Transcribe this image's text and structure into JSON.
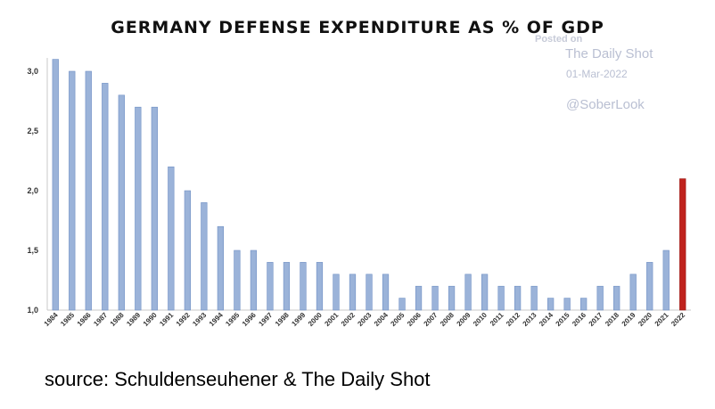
{
  "chart_data": {
    "type": "bar",
    "title": "GERMANY DEFENSE EXPENDITURE AS % OF GDP",
    "xlabel": "",
    "ylabel": "",
    "categories": [
      "1984",
      "1985",
      "1986",
      "1987",
      "1988",
      "1989",
      "1990",
      "1991",
      "1992",
      "1993",
      "1994",
      "1995",
      "1996",
      "1997",
      "1998",
      "1999",
      "2000",
      "2001",
      "2002",
      "2003",
      "2004",
      "2005",
      "2006",
      "2007",
      "2008",
      "2009",
      "2010",
      "2011",
      "2012",
      "2013",
      "2014",
      "2015",
      "2016",
      "2017",
      "2018",
      "2019",
      "2020",
      "2021",
      "2022"
    ],
    "values": [
      3.1,
      3.0,
      3.0,
      2.9,
      2.8,
      2.7,
      2.7,
      2.2,
      2.0,
      1.9,
      1.7,
      1.5,
      1.5,
      1.4,
      1.4,
      1.4,
      1.4,
      1.3,
      1.3,
      1.3,
      1.3,
      1.1,
      1.2,
      1.2,
      1.2,
      1.3,
      1.3,
      1.2,
      1.2,
      1.2,
      1.1,
      1.1,
      1.1,
      1.2,
      1.2,
      1.3,
      1.4,
      1.5,
      2.1
    ],
    "y_ticks": [
      "1,0",
      "1,5",
      "2,0",
      "2,5",
      "3,0"
    ],
    "ylim": [
      1.0,
      3.0
    ],
    "grid": false,
    "legend": "none",
    "bar_color": "#9bb3d9",
    "bar_edge_color": "#6f8fc4",
    "highlight_category": "2022",
    "highlight_color": "#c0221d"
  },
  "watermark": {
    "posted": "Posted on",
    "publication": "The Daily Shot",
    "date": "01-Mar-2022",
    "handle": "@SoberLook"
  },
  "source_note": "source: Schuldenseuhener & The Daily Shot"
}
